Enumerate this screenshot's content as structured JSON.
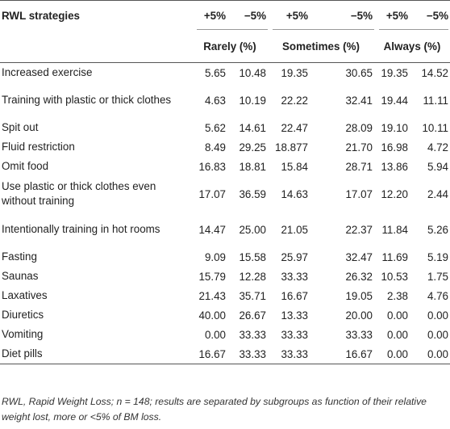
{
  "table": {
    "header": {
      "row_label": "RWL strategies",
      "pct_labels": [
        "+5%",
        "−5%",
        "+5%",
        "−5%",
        "+5%",
        "−5%"
      ],
      "groups": [
        "Rarely (%)",
        "Sometimes (%)",
        "Always (%)"
      ]
    },
    "rows": [
      {
        "label": "Increased exercise",
        "values": [
          "5.65",
          "10.48",
          "19.35",
          "30.65",
          "19.35",
          "14.52"
        ]
      },
      {
        "label": "Training with plastic or thick clothes",
        "values": [
          "4.63",
          "10.19",
          "22.22",
          "32.41",
          "19.44",
          "11.11"
        ]
      },
      {
        "label": "Spit out",
        "values": [
          "5.62",
          "14.61",
          "22.47",
          "28.09",
          "19.10",
          "10.11"
        ]
      },
      {
        "label": "Fluid restriction",
        "values": [
          "8.49",
          "29.25",
          "18.877",
          "21.70",
          "16.98",
          "4.72"
        ]
      },
      {
        "label": "Omit food",
        "values": [
          "16.83",
          "18.81",
          "15.84",
          "28.71",
          "13.86",
          "5.94"
        ]
      },
      {
        "label": "Use plastic or thick clothes even without training",
        "values": [
          "17.07",
          "36.59",
          "14.63",
          "17.07",
          "12.20",
          "2.44"
        ]
      },
      {
        "label": "Intentionally training in hot rooms",
        "values": [
          "14.47",
          "25.00",
          "21.05",
          "22.37",
          "11.84",
          "5.26"
        ]
      },
      {
        "label": "Fasting",
        "values": [
          "9.09",
          "15.58",
          "25.97",
          "32.47",
          "11.69",
          "5.19"
        ]
      },
      {
        "label": "Saunas",
        "values": [
          "15.79",
          "12.28",
          "33.33",
          "26.32",
          "10.53",
          "1.75"
        ]
      },
      {
        "label": "Laxatives",
        "values": [
          "21.43",
          "35.71",
          "16.67",
          "19.05",
          "2.38",
          "4.76"
        ]
      },
      {
        "label": "Diuretics",
        "values": [
          "40.00",
          "26.67",
          "13.33",
          "20.00",
          "0.00",
          "0.00"
        ]
      },
      {
        "label": "Vomiting",
        "values": [
          "0.00",
          "33.33",
          "33.33",
          "33.33",
          "0.00",
          "0.00"
        ]
      },
      {
        "label": "Diet pills",
        "values": [
          "16.67",
          "33.33",
          "33.33",
          "16.67",
          "0.00",
          "0.00"
        ]
      }
    ],
    "footnote": "RWL, Rapid Weight Loss; n = 148; results are separated by subgroups as function of their relative weight lost, more or <5% of BM loss."
  }
}
